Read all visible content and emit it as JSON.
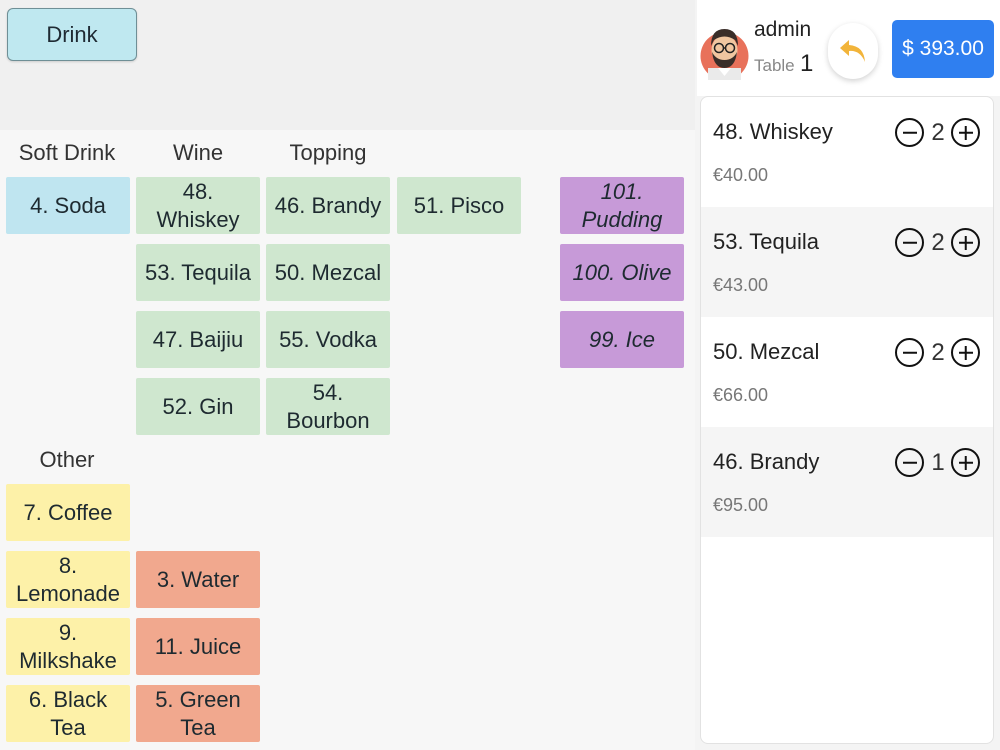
{
  "top": {
    "category_button": "Drink"
  },
  "columns": {
    "soft_drink": "Soft Drink",
    "wine": "Wine",
    "topping": "Topping",
    "other": "Other"
  },
  "tiles": {
    "soda": "4. Soda",
    "whiskey": "48. Whiskey",
    "brandy": "46. Brandy",
    "pisco": "51. Pisco",
    "tequila": "53. Tequila",
    "mezcal": "50. Mezcal",
    "baijiu": "47. Baijiu",
    "vodka": "55. Vodka",
    "gin": "52. Gin",
    "bourbon": "54. Bourbon",
    "pudding": "101. Pudding",
    "olive": "100. Olive",
    "ice": "99. Ice",
    "coffee": "7. Coffee",
    "lemonade": "8. Lemonade",
    "water": "3. Water",
    "milkshake": "9. Milkshake",
    "juice": "11. Juice",
    "black_tea": "6. Black Tea",
    "green_tea": "5. Green Tea"
  },
  "header": {
    "user_name": "admin",
    "table_label": "Table",
    "table_number": "1",
    "total": "$ 393.00",
    "undo_icon": "undo-arrow-icon"
  },
  "order": {
    "items": [
      {
        "name": "48. Whiskey",
        "price": "€40.00",
        "qty": "2"
      },
      {
        "name": "53. Tequila",
        "price": "€43.00",
        "qty": "2"
      },
      {
        "name": "50. Mezcal",
        "price": "€66.00",
        "qty": "2"
      },
      {
        "name": "46. Brandy",
        "price": "€95.00",
        "qty": "1"
      }
    ]
  },
  "colors": {
    "soft_drink": "#bfe5f0",
    "wine": "#cfe7cf",
    "topping": "#c79ad8",
    "other_yellow": "#fdf1a8",
    "other_orange": "#f1a88e",
    "accent": "#2f7ff0"
  }
}
